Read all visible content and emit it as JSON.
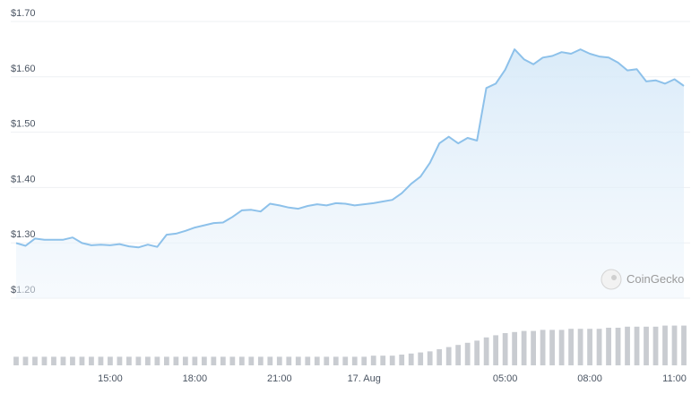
{
  "chart_data": {
    "type": "line",
    "categories": [
      null,
      null,
      null,
      null,
      null,
      null,
      null,
      null,
      null,
      null,
      "15:00",
      null,
      null,
      null,
      null,
      null,
      null,
      null,
      null,
      "18:00",
      null,
      null,
      null,
      null,
      null,
      null,
      null,
      null,
      "21:00",
      null,
      null,
      null,
      null,
      null,
      null,
      null,
      null,
      "17. Aug",
      null,
      null,
      null,
      null,
      null,
      null,
      null,
      null,
      null,
      null,
      null,
      null,
      null,
      null,
      "05:00",
      null,
      null,
      null,
      null,
      null,
      null,
      null,
      null,
      "08:00",
      null,
      null,
      null,
      null,
      null,
      null,
      null,
      null,
      "11:00",
      null
    ],
    "series": [
      {
        "color": "#8dc1ea",
        "values": [
          1.29,
          1.285,
          1.298,
          1.296,
          1.296,
          1.296,
          1.3,
          1.29,
          1.286,
          1.287,
          1.286,
          1.288,
          1.284,
          1.282,
          1.287,
          1.283,
          1.305,
          1.307,
          1.312,
          1.318,
          1.322,
          1.326,
          1.327,
          1.337,
          1.349,
          1.35,
          1.347,
          1.361,
          1.358,
          1.354,
          1.352,
          1.357,
          1.36,
          1.358,
          1.362,
          1.361,
          1.358,
          1.36,
          1.362,
          1.365,
          1.368,
          1.38,
          1.397,
          1.41,
          1.435,
          1.47,
          1.482,
          1.47,
          1.48,
          1.475,
          1.57,
          1.578,
          1.603,
          1.64,
          1.622,
          1.613,
          1.625,
          1.628,
          1.635,
          1.632,
          1.64,
          1.632,
          1.627,
          1.625,
          1.616,
          1.602,
          1.604,
          1.582,
          1.584,
          1.578,
          1.586,
          1.574
        ]
      },
      {
        "type": "bar",
        "axis": "y2",
        "color": "#c9ccd1",
        "values": [
          8,
          8,
          8,
          8,
          8,
          8,
          8,
          8,
          8,
          8,
          8,
          8,
          8,
          8,
          8,
          8,
          8,
          8,
          8,
          8,
          8,
          8,
          8,
          8,
          8,
          8,
          8,
          8,
          8,
          8,
          8,
          8,
          8,
          8,
          8,
          8,
          8,
          8,
          9,
          9,
          9,
          10,
          11,
          12,
          13,
          15,
          17,
          19,
          21,
          23,
          26,
          28,
          30,
          31,
          32,
          32,
          33,
          33,
          33,
          34,
          34,
          34,
          34,
          35,
          35,
          36,
          36,
          36,
          36,
          37,
          37,
          37
        ]
      }
    ],
    "ylim": [
      1.2,
      1.7
    ],
    "yticks": [
      {
        "value": 1.2,
        "label": "$1.20"
      },
      {
        "value": 1.3,
        "label": "$1.30"
      },
      {
        "value": 1.4,
        "label": "$1.40"
      },
      {
        "value": 1.5,
        "label": "$1.50"
      },
      {
        "value": 1.6,
        "label": "$1.60"
      },
      {
        "value": 1.7,
        "label": "$1.70"
      }
    ],
    "y2lim": [
      0,
      40
    ],
    "grid": true,
    "watermark": "CoinGecko"
  }
}
